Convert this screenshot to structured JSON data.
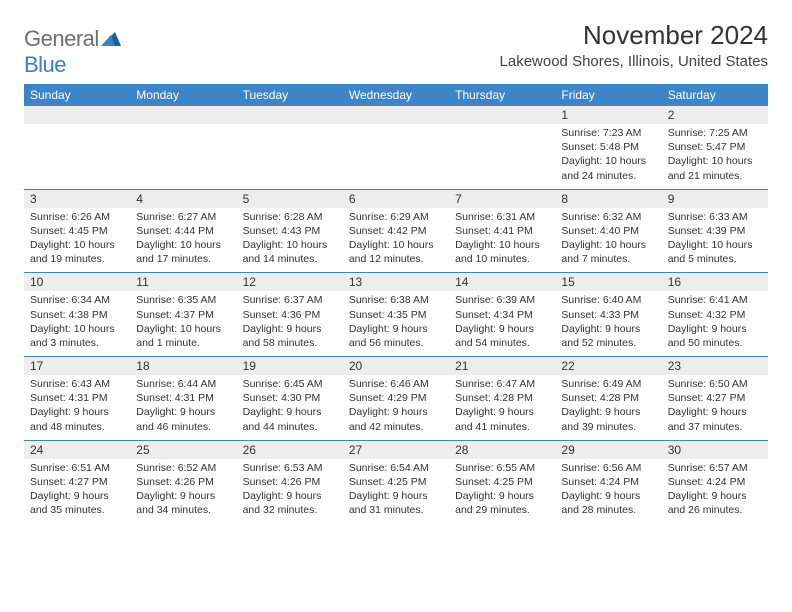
{
  "colors": {
    "header_bg": "#3d85c6",
    "header_text": "#ffffff",
    "daynum_bg": "#ededed",
    "row_border": "#3d85c6",
    "body_text": "#333333",
    "logo_gray": "#6e6e6e",
    "logo_blue": "#3e7fbf",
    "page_bg": "#ffffff"
  },
  "logo": {
    "part1": "General",
    "part2": "Blue"
  },
  "title": "November 2024",
  "location": "Lakewood Shores, Illinois, United States",
  "weekdays": [
    "Sunday",
    "Monday",
    "Tuesday",
    "Wednesday",
    "Thursday",
    "Friday",
    "Saturday"
  ],
  "weeks": [
    {
      "nums": [
        "",
        "",
        "",
        "",
        "",
        "1",
        "2"
      ],
      "cells": [
        null,
        null,
        null,
        null,
        null,
        {
          "sr": "Sunrise: 7:23 AM",
          "ss": "Sunset: 5:48 PM",
          "d1": "Daylight: 10 hours",
          "d2": "and 24 minutes."
        },
        {
          "sr": "Sunrise: 7:25 AM",
          "ss": "Sunset: 5:47 PM",
          "d1": "Daylight: 10 hours",
          "d2": "and 21 minutes."
        }
      ]
    },
    {
      "nums": [
        "3",
        "4",
        "5",
        "6",
        "7",
        "8",
        "9"
      ],
      "cells": [
        {
          "sr": "Sunrise: 6:26 AM",
          "ss": "Sunset: 4:45 PM",
          "d1": "Daylight: 10 hours",
          "d2": "and 19 minutes."
        },
        {
          "sr": "Sunrise: 6:27 AM",
          "ss": "Sunset: 4:44 PM",
          "d1": "Daylight: 10 hours",
          "d2": "and 17 minutes."
        },
        {
          "sr": "Sunrise: 6:28 AM",
          "ss": "Sunset: 4:43 PM",
          "d1": "Daylight: 10 hours",
          "d2": "and 14 minutes."
        },
        {
          "sr": "Sunrise: 6:29 AM",
          "ss": "Sunset: 4:42 PM",
          "d1": "Daylight: 10 hours",
          "d2": "and 12 minutes."
        },
        {
          "sr": "Sunrise: 6:31 AM",
          "ss": "Sunset: 4:41 PM",
          "d1": "Daylight: 10 hours",
          "d2": "and 10 minutes."
        },
        {
          "sr": "Sunrise: 6:32 AM",
          "ss": "Sunset: 4:40 PM",
          "d1": "Daylight: 10 hours",
          "d2": "and 7 minutes."
        },
        {
          "sr": "Sunrise: 6:33 AM",
          "ss": "Sunset: 4:39 PM",
          "d1": "Daylight: 10 hours",
          "d2": "and 5 minutes."
        }
      ]
    },
    {
      "nums": [
        "10",
        "11",
        "12",
        "13",
        "14",
        "15",
        "16"
      ],
      "cells": [
        {
          "sr": "Sunrise: 6:34 AM",
          "ss": "Sunset: 4:38 PM",
          "d1": "Daylight: 10 hours",
          "d2": "and 3 minutes."
        },
        {
          "sr": "Sunrise: 6:35 AM",
          "ss": "Sunset: 4:37 PM",
          "d1": "Daylight: 10 hours",
          "d2": "and 1 minute."
        },
        {
          "sr": "Sunrise: 6:37 AM",
          "ss": "Sunset: 4:36 PM",
          "d1": "Daylight: 9 hours",
          "d2": "and 58 minutes."
        },
        {
          "sr": "Sunrise: 6:38 AM",
          "ss": "Sunset: 4:35 PM",
          "d1": "Daylight: 9 hours",
          "d2": "and 56 minutes."
        },
        {
          "sr": "Sunrise: 6:39 AM",
          "ss": "Sunset: 4:34 PM",
          "d1": "Daylight: 9 hours",
          "d2": "and 54 minutes."
        },
        {
          "sr": "Sunrise: 6:40 AM",
          "ss": "Sunset: 4:33 PM",
          "d1": "Daylight: 9 hours",
          "d2": "and 52 minutes."
        },
        {
          "sr": "Sunrise: 6:41 AM",
          "ss": "Sunset: 4:32 PM",
          "d1": "Daylight: 9 hours",
          "d2": "and 50 minutes."
        }
      ]
    },
    {
      "nums": [
        "17",
        "18",
        "19",
        "20",
        "21",
        "22",
        "23"
      ],
      "cells": [
        {
          "sr": "Sunrise: 6:43 AM",
          "ss": "Sunset: 4:31 PM",
          "d1": "Daylight: 9 hours",
          "d2": "and 48 minutes."
        },
        {
          "sr": "Sunrise: 6:44 AM",
          "ss": "Sunset: 4:31 PM",
          "d1": "Daylight: 9 hours",
          "d2": "and 46 minutes."
        },
        {
          "sr": "Sunrise: 6:45 AM",
          "ss": "Sunset: 4:30 PM",
          "d1": "Daylight: 9 hours",
          "d2": "and 44 minutes."
        },
        {
          "sr": "Sunrise: 6:46 AM",
          "ss": "Sunset: 4:29 PM",
          "d1": "Daylight: 9 hours",
          "d2": "and 42 minutes."
        },
        {
          "sr": "Sunrise: 6:47 AM",
          "ss": "Sunset: 4:28 PM",
          "d1": "Daylight: 9 hours",
          "d2": "and 41 minutes."
        },
        {
          "sr": "Sunrise: 6:49 AM",
          "ss": "Sunset: 4:28 PM",
          "d1": "Daylight: 9 hours",
          "d2": "and 39 minutes."
        },
        {
          "sr": "Sunrise: 6:50 AM",
          "ss": "Sunset: 4:27 PM",
          "d1": "Daylight: 9 hours",
          "d2": "and 37 minutes."
        }
      ]
    },
    {
      "nums": [
        "24",
        "25",
        "26",
        "27",
        "28",
        "29",
        "30"
      ],
      "cells": [
        {
          "sr": "Sunrise: 6:51 AM",
          "ss": "Sunset: 4:27 PM",
          "d1": "Daylight: 9 hours",
          "d2": "and 35 minutes."
        },
        {
          "sr": "Sunrise: 6:52 AM",
          "ss": "Sunset: 4:26 PM",
          "d1": "Daylight: 9 hours",
          "d2": "and 34 minutes."
        },
        {
          "sr": "Sunrise: 6:53 AM",
          "ss": "Sunset: 4:26 PM",
          "d1": "Daylight: 9 hours",
          "d2": "and 32 minutes."
        },
        {
          "sr": "Sunrise: 6:54 AM",
          "ss": "Sunset: 4:25 PM",
          "d1": "Daylight: 9 hours",
          "d2": "and 31 minutes."
        },
        {
          "sr": "Sunrise: 6:55 AM",
          "ss": "Sunset: 4:25 PM",
          "d1": "Daylight: 9 hours",
          "d2": "and 29 minutes."
        },
        {
          "sr": "Sunrise: 6:56 AM",
          "ss": "Sunset: 4:24 PM",
          "d1": "Daylight: 9 hours",
          "d2": "and 28 minutes."
        },
        {
          "sr": "Sunrise: 6:57 AM",
          "ss": "Sunset: 4:24 PM",
          "d1": "Daylight: 9 hours",
          "d2": "and 26 minutes."
        }
      ]
    }
  ]
}
